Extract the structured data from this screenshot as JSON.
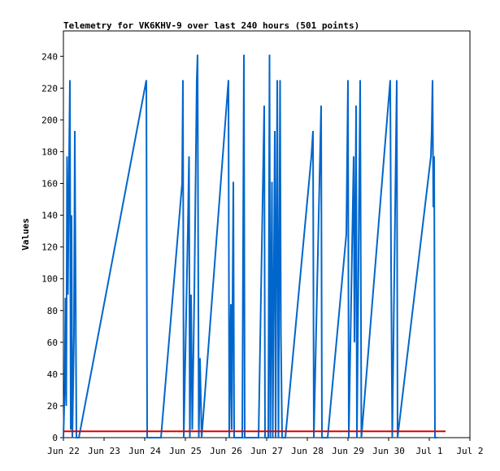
{
  "chart_data": {
    "type": "line",
    "title": "Telemetry for VK6KHV-9 over last 240 hours (501 points)",
    "xlabel": "",
    "ylabel": "Values",
    "xlim": [
      0,
      10
    ],
    "ylim": [
      0,
      256
    ],
    "yticks": [
      0,
      20,
      40,
      60,
      80,
      100,
      120,
      140,
      160,
      180,
      200,
      220,
      240
    ],
    "xticks": [
      {
        "x": 0,
        "label": "Jun 22"
      },
      {
        "x": 1,
        "label": "Jun 23"
      },
      {
        "x": 2,
        "label": "Jun 24"
      },
      {
        "x": 3,
        "label": "Jun 25"
      },
      {
        "x": 4,
        "label": "Jun 26"
      },
      {
        "x": 5,
        "label": "Jun 27"
      },
      {
        "x": 6,
        "label": "Jun 28"
      },
      {
        "x": 7,
        "label": "Jun 29"
      },
      {
        "x": 8,
        "label": "Jun 30"
      },
      {
        "x": 9,
        "label": "Jul 1"
      },
      {
        "x": 10,
        "label": "Jul 2"
      }
    ],
    "grid": false,
    "series": [
      {
        "color": "#0066cc",
        "points": [
          [
            0.0,
            0
          ],
          [
            0.03,
            30
          ],
          [
            0.05,
            88
          ],
          [
            0.07,
            20
          ],
          [
            0.09,
            177
          ],
          [
            0.11,
            90
          ],
          [
            0.14,
            177
          ],
          [
            0.16,
            225
          ],
          [
            0.18,
            5
          ],
          [
            0.2,
            140
          ],
          [
            0.22,
            0
          ],
          [
            0.26,
            65
          ],
          [
            0.28,
            193
          ],
          [
            0.32,
            0
          ],
          [
            0.38,
            0
          ],
          [
            2.04,
            225
          ],
          [
            2.06,
            0
          ],
          [
            2.4,
            0
          ],
          [
            2.92,
            160
          ],
          [
            2.94,
            225
          ],
          [
            2.96,
            0
          ],
          [
            3.06,
            130
          ],
          [
            3.09,
            177
          ],
          [
            3.11,
            0
          ],
          [
            3.14,
            90
          ],
          [
            3.17,
            5
          ],
          [
            3.22,
            90
          ],
          [
            3.28,
            225
          ],
          [
            3.3,
            241
          ],
          [
            3.33,
            0
          ],
          [
            3.36,
            50
          ],
          [
            3.4,
            0
          ],
          [
            4.06,
            225
          ],
          [
            4.08,
            0
          ],
          [
            4.12,
            84
          ],
          [
            4.14,
            5
          ],
          [
            4.18,
            161
          ],
          [
            4.2,
            0
          ],
          [
            4.4,
            0
          ],
          [
            4.44,
            241
          ],
          [
            4.46,
            0
          ],
          [
            4.8,
            0
          ],
          [
            4.94,
            209
          ],
          [
            4.96,
            0
          ],
          [
            5.04,
            0
          ],
          [
            5.07,
            241
          ],
          [
            5.09,
            0
          ],
          [
            5.13,
            161
          ],
          [
            5.15,
            0
          ],
          [
            5.2,
            193
          ],
          [
            5.22,
            0
          ],
          [
            5.26,
            225
          ],
          [
            5.29,
            0
          ],
          [
            5.33,
            225
          ],
          [
            5.35,
            65
          ],
          [
            5.38,
            0
          ],
          [
            5.46,
            0
          ],
          [
            6.1,
            177
          ],
          [
            6.14,
            193
          ],
          [
            6.16,
            0
          ],
          [
            6.34,
            209
          ],
          [
            6.36,
            0
          ],
          [
            6.5,
            0
          ],
          [
            6.96,
            128
          ],
          [
            7.0,
            225
          ],
          [
            7.02,
            0
          ],
          [
            7.14,
            177
          ],
          [
            7.16,
            60
          ],
          [
            7.2,
            209
          ],
          [
            7.22,
            0
          ],
          [
            7.3,
            225
          ],
          [
            7.33,
            0
          ],
          [
            8.04,
            225
          ],
          [
            8.06,
            112
          ],
          [
            8.09,
            0
          ],
          [
            8.2,
            225
          ],
          [
            8.22,
            0
          ],
          [
            9.04,
            177
          ],
          [
            9.06,
            193
          ],
          [
            9.08,
            225
          ],
          [
            9.1,
            145
          ],
          [
            9.12,
            177
          ],
          [
            9.14,
            0
          ],
          [
            9.2,
            0
          ]
        ]
      },
      {
        "color": "#dd0000",
        "points": [
          [
            0.0,
            4
          ],
          [
            9.4,
            4
          ]
        ]
      }
    ]
  }
}
